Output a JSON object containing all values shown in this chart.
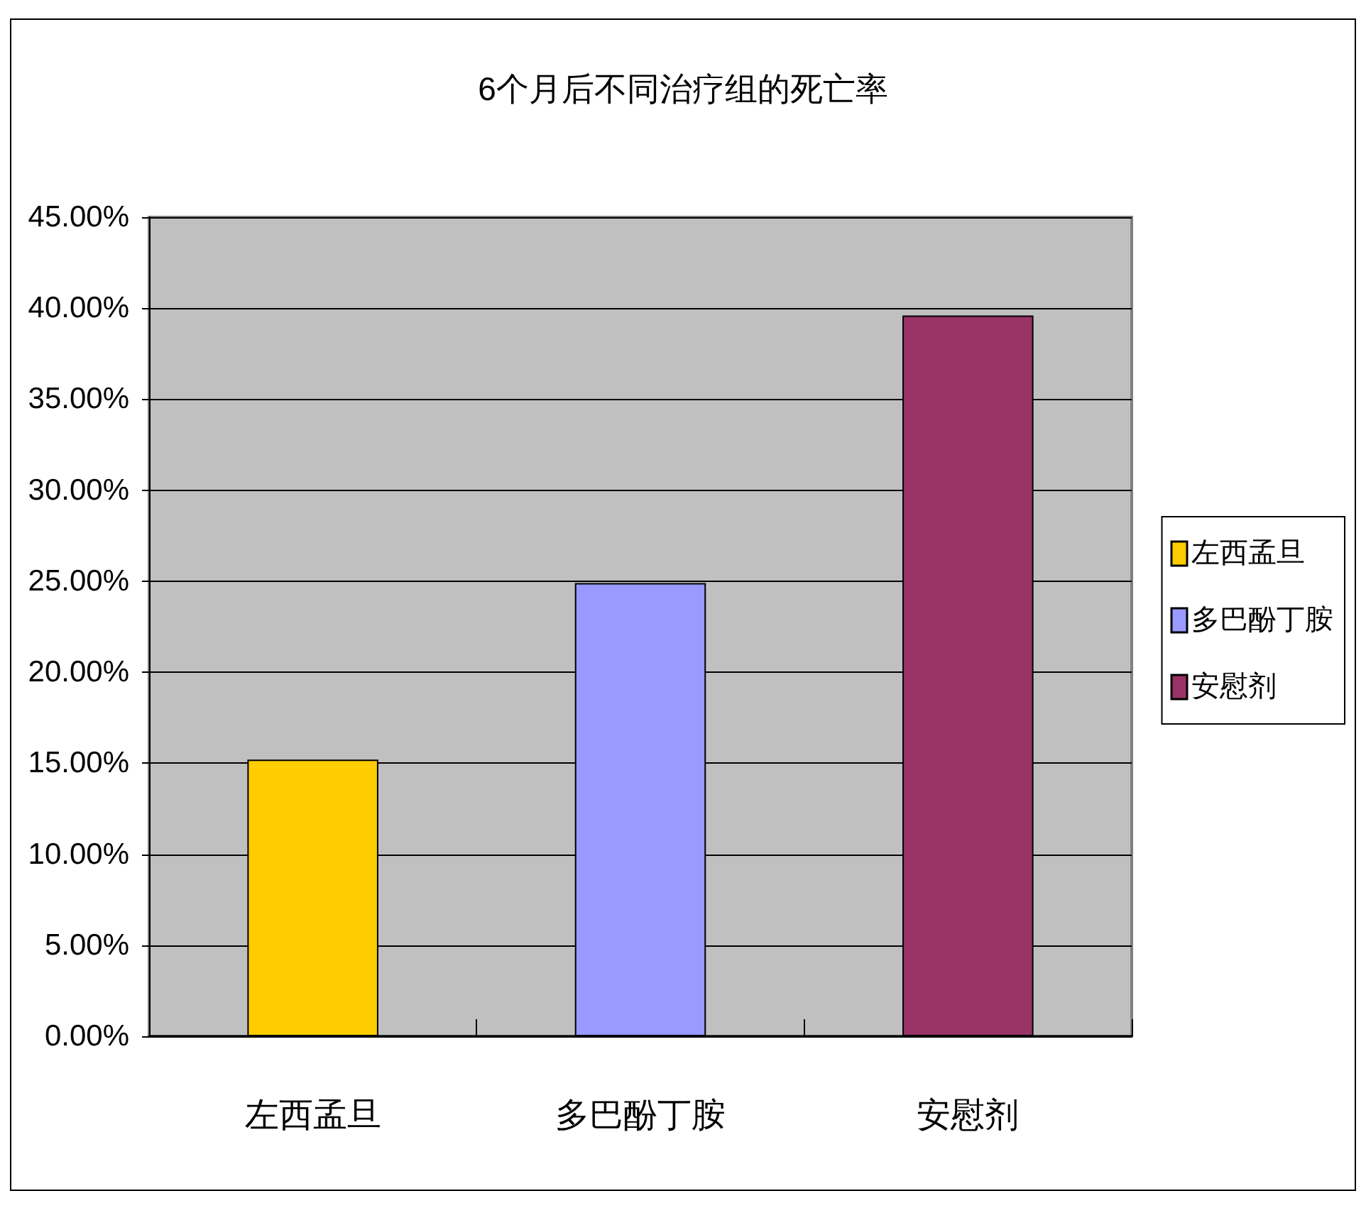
{
  "chart_data": {
    "type": "bar",
    "title": "6个月后不同治疗组的死亡率",
    "categories": [
      "左西孟旦",
      "多巴酚丁胺",
      "安慰剂"
    ],
    "series": [
      {
        "name": "左西孟旦",
        "color": "#ffcc00",
        "values": [
          15.2,
          null,
          null
        ]
      },
      {
        "name": "多巴酚丁胺",
        "color": "#9999ff",
        "values": [
          null,
          24.9,
          null
        ]
      },
      {
        "name": "安慰剂",
        "color": "#993366",
        "values": [
          null,
          null,
          39.6
        ]
      }
    ],
    "ylim": [
      0,
      45
    ],
    "yticks": [
      {
        "value": 0,
        "label": "0.00%"
      },
      {
        "value": 5,
        "label": "5.00%"
      },
      {
        "value": 10,
        "label": "10.00%"
      },
      {
        "value": 15,
        "label": "15.00%"
      },
      {
        "value": 20,
        "label": "20.00%"
      },
      {
        "value": 25,
        "label": "25.00%"
      },
      {
        "value": 30,
        "label": "30.00%"
      },
      {
        "value": 35,
        "label": "35.00%"
      },
      {
        "value": 40,
        "label": "40.00%"
      },
      {
        "value": 45,
        "label": "45.00%"
      }
    ],
    "grid": "y",
    "legend": "right"
  }
}
